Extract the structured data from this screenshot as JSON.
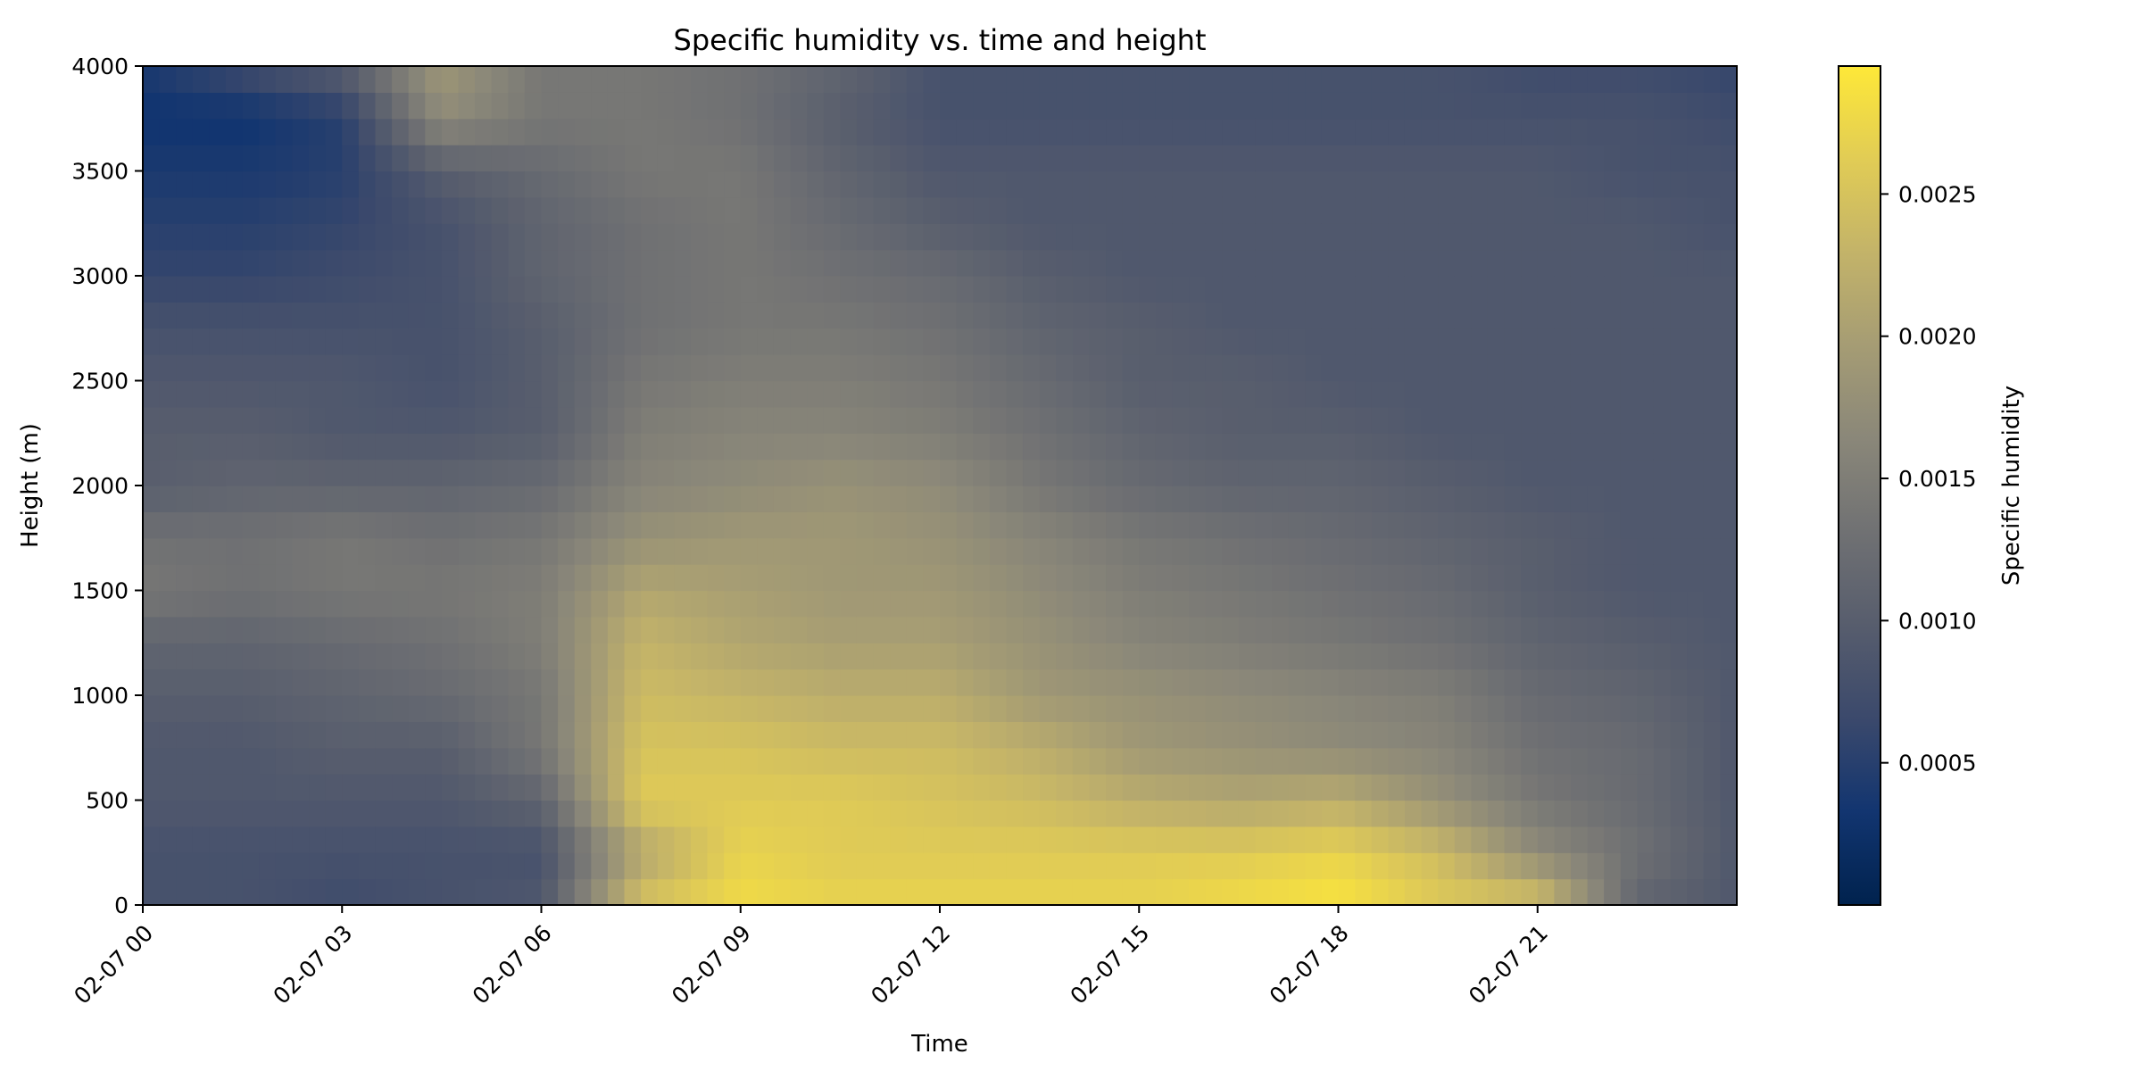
{
  "chart_data": {
    "type": "heatmap",
    "title": "Specific humidity vs. time and height",
    "xlabel": "Time",
    "ylabel": "Height (m)",
    "colorbar_label": "Specific humidity",
    "colormap": "cividis",
    "colormap_stops": [
      "#00224e",
      "#123570",
      "#3b496c",
      "#575d6d",
      "#707173",
      "#8a8779",
      "#a59c74",
      "#c3b369",
      "#e1cc55",
      "#fee838"
    ],
    "x_range": [
      "2025-02-07 00:00",
      "2025-02-08 00:00"
    ],
    "xlim": [
      0,
      24
    ],
    "x_ticks": [
      0,
      3,
      6,
      9,
      12,
      15,
      18,
      21
    ],
    "x_tick_labels": [
      "02-07 00",
      "02-07 03",
      "02-07 06",
      "02-07 09",
      "02-07 12",
      "02-07 15",
      "02-07 18",
      "02-07 21"
    ],
    "ylim": [
      0,
      4000
    ],
    "y_ticks": [
      0,
      500,
      1000,
      1500,
      2000,
      2500,
      3000,
      3500,
      4000
    ],
    "y_tick_labels": [
      "0",
      "500",
      "1000",
      "1500",
      "2000",
      "2500",
      "3000",
      "3500",
      "4000"
    ],
    "value_range": [
      0.0,
      0.00295
    ],
    "colorbar_ticks": [
      0.0005,
      0.001,
      0.0015,
      0.002,
      0.0025
    ],
    "colorbar_tick_labels": [
      "0.0005",
      "0.0010",
      "0.0015",
      "0.0020",
      "0.0025"
    ],
    "grid": false,
    "grid_hours": [
      0,
      1.5,
      3,
      4.5,
      6,
      7.5,
      9,
      10.5,
      12,
      13.5,
      15,
      16.5,
      18,
      19.5,
      21,
      22.5,
      24
    ],
    "grid_heights": [
      0,
      250,
      500,
      750,
      1000,
      1250,
      1500,
      1750,
      2000,
      2250,
      2500,
      2750,
      3000,
      3250,
      3500,
      3750,
      4000
    ],
    "values": [
      [
        0.0008,
        0.0008,
        0.0007,
        0.0008,
        0.0009,
        0.0025,
        0.0028,
        0.0027,
        0.0027,
        0.0027,
        0.0027,
        0.0028,
        0.0029,
        0.0026,
        0.0025,
        0.0011,
        0.0009
      ],
      [
        0.0008,
        0.0008,
        0.0008,
        0.0008,
        0.0008,
        0.0021,
        0.0027,
        0.0026,
        0.0026,
        0.0026,
        0.0026,
        0.0026,
        0.0027,
        0.0024,
        0.0017,
        0.0013,
        0.0009
      ],
      [
        0.0009,
        0.0009,
        0.0009,
        0.0009,
        0.0011,
        0.0026,
        0.0026,
        0.0026,
        0.0025,
        0.0024,
        0.0022,
        0.0021,
        0.0022,
        0.0018,
        0.0014,
        0.0012,
        0.0009
      ],
      [
        0.0009,
        0.0009,
        0.001,
        0.001,
        0.0014,
        0.0025,
        0.0025,
        0.0024,
        0.0024,
        0.0022,
        0.0019,
        0.0018,
        0.0017,
        0.0016,
        0.0013,
        0.0012,
        0.0009
      ],
      [
        0.001,
        0.001,
        0.0011,
        0.0012,
        0.0014,
        0.0024,
        0.0023,
        0.0022,
        0.0022,
        0.0019,
        0.0018,
        0.0017,
        0.0016,
        0.0015,
        0.0012,
        0.0011,
        0.0009
      ],
      [
        0.0011,
        0.0011,
        0.0012,
        0.0013,
        0.0015,
        0.0023,
        0.0021,
        0.002,
        0.002,
        0.0018,
        0.0016,
        0.0015,
        0.0014,
        0.0013,
        0.0011,
        0.001,
        0.0009
      ],
      [
        0.0014,
        0.0013,
        0.0014,
        0.0014,
        0.0015,
        0.0021,
        0.002,
        0.0019,
        0.0019,
        0.0017,
        0.0015,
        0.0014,
        0.0013,
        0.0012,
        0.001,
        0.0009,
        0.0009
      ],
      [
        0.0013,
        0.0013,
        0.0014,
        0.0013,
        0.0014,
        0.0018,
        0.0019,
        0.0019,
        0.0018,
        0.0016,
        0.0014,
        0.0013,
        0.0012,
        0.0011,
        0.001,
        0.0009,
        0.0009
      ],
      [
        0.001,
        0.0011,
        0.0011,
        0.0011,
        0.0012,
        0.0016,
        0.0017,
        0.0018,
        0.0017,
        0.0014,
        0.0012,
        0.0011,
        0.0011,
        0.001,
        0.0009,
        0.0009,
        0.0009
      ],
      [
        0.001,
        0.001,
        0.0009,
        0.0009,
        0.001,
        0.0015,
        0.0016,
        0.0016,
        0.0015,
        0.0013,
        0.0011,
        0.001,
        0.001,
        0.0009,
        0.0009,
        0.0009,
        0.0009
      ],
      [
        0.0009,
        0.0009,
        0.0009,
        0.0008,
        0.001,
        0.0014,
        0.0015,
        0.0015,
        0.0014,
        0.0012,
        0.001,
        0.001,
        0.0009,
        0.0009,
        0.0009,
        0.0009,
        0.0009
      ],
      [
        0.0008,
        0.0008,
        0.0008,
        0.0008,
        0.001,
        0.0013,
        0.0014,
        0.0014,
        0.0013,
        0.0011,
        0.001,
        0.0009,
        0.0009,
        0.0009,
        0.0009,
        0.0009,
        0.0009
      ],
      [
        0.0006,
        0.0006,
        0.0007,
        0.0008,
        0.0011,
        0.0013,
        0.0014,
        0.0013,
        0.0012,
        0.001,
        0.0009,
        0.0009,
        0.0009,
        0.0009,
        0.0009,
        0.0009,
        0.0009
      ],
      [
        0.0005,
        0.0005,
        0.0006,
        0.0008,
        0.0011,
        0.0013,
        0.0014,
        0.0012,
        0.001,
        0.0009,
        0.0009,
        0.0009,
        0.0009,
        0.0009,
        0.0009,
        0.0009,
        0.0008
      ],
      [
        0.0004,
        0.0004,
        0.0005,
        0.001,
        0.0012,
        0.0014,
        0.0014,
        0.0011,
        0.0009,
        0.0009,
        0.0009,
        0.0009,
        0.0009,
        0.0009,
        0.0009,
        0.0008,
        0.0008
      ],
      [
        0.0003,
        0.0003,
        0.0005,
        0.0017,
        0.0014,
        0.0014,
        0.0013,
        0.001,
        0.0008,
        0.0008,
        0.0008,
        0.0008,
        0.0008,
        0.0008,
        0.0008,
        0.0008,
        0.0007
      ],
      [
        0.0004,
        0.0007,
        0.001,
        0.0019,
        0.0014,
        0.0014,
        0.0013,
        0.0011,
        0.0008,
        0.0008,
        0.0008,
        0.0008,
        0.0008,
        0.0008,
        0.0007,
        0.0007,
        0.0006
      ]
    ]
  }
}
